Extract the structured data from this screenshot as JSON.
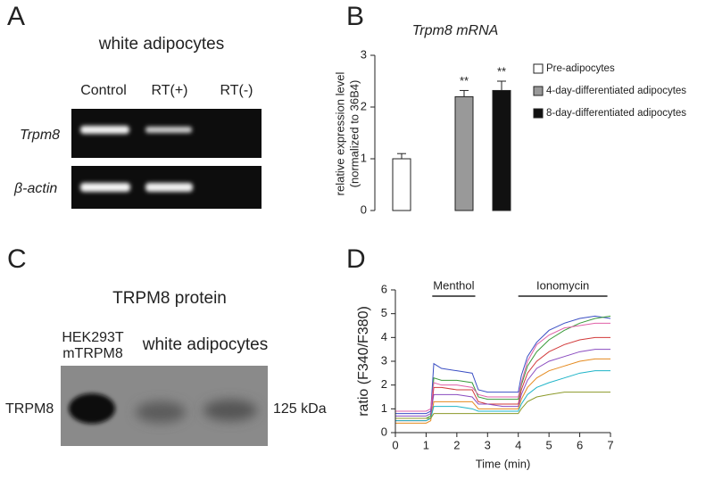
{
  "panels": {
    "A": {
      "letter": "A",
      "title": "white adipocytes",
      "lanes": [
        "Control",
        "RT(+)",
        "RT(-)"
      ],
      "rows": [
        "Trpm8",
        "β-actin"
      ]
    },
    "C": {
      "letter": "C",
      "title": "TRPM8 protein",
      "lane_label_lines": [
        "HEK293T",
        "mTRPM8"
      ],
      "lane_group": "white adipocytes",
      "band_label": "TRPM8",
      "marker": "125 kDa"
    },
    "B": {
      "letter": "B"
    },
    "D": {
      "letter": "D"
    }
  },
  "chart_data": [
    {
      "type": "bar",
      "title": "Trpm8 mRNA",
      "ylabel": [
        "relative expression level",
        "(normalized to 36B4)"
      ],
      "ylim": [
        0,
        3
      ],
      "yticks": [
        0,
        1,
        2,
        3
      ],
      "series": [
        {
          "name": "Pre-adipocytes",
          "color": "#ffffff",
          "values": [
            1.0
          ],
          "errors": [
            0.1
          ]
        },
        {
          "name": "4-day-differentiated adipocytes",
          "color": "#999999",
          "values": [
            2.2
          ],
          "errors": [
            0.12
          ],
          "annotation": "**"
        },
        {
          "name": "8-day-differentiated adipocytes",
          "color": "#111111",
          "values": [
            2.32
          ],
          "errors": [
            0.18
          ],
          "annotation": "**"
        }
      ]
    },
    {
      "type": "line",
      "xlabel": "Time (min)",
      "ylabel": "ratio (F340/F380)",
      "xlim": [
        0,
        7
      ],
      "xticks": [
        0,
        1,
        2,
        3,
        4,
        5,
        6,
        7
      ],
      "ylim": [
        0,
        6
      ],
      "yticks": [
        0,
        1,
        2,
        3,
        4,
        5,
        6
      ],
      "annotations": [
        {
          "text": "Menthol",
          "x_range": [
            1.2,
            2.6
          ]
        },
        {
          "text": "Ionomycin",
          "x_range": [
            4,
            6.9
          ]
        }
      ],
      "x": [
        0,
        0.5,
        1,
        1.15,
        1.25,
        1.5,
        2,
        2.5,
        2.7,
        3,
        3.5,
        4,
        4.1,
        4.3,
        4.6,
        5,
        5.5,
        6,
        6.5,
        7
      ],
      "series": [
        {
          "color": "#3b4fc4",
          "values": [
            0.8,
            0.8,
            0.8,
            0.9,
            2.9,
            2.7,
            2.6,
            2.5,
            1.8,
            1.7,
            1.7,
            1.7,
            2.4,
            3.2,
            3.8,
            4.3,
            4.6,
            4.8,
            4.9,
            4.8
          ]
        },
        {
          "color": "#3a9a3a",
          "values": [
            0.6,
            0.6,
            0.6,
            0.7,
            2.3,
            2.2,
            2.2,
            2.1,
            1.5,
            1.4,
            1.4,
            1.4,
            2.0,
            2.8,
            3.4,
            3.9,
            4.3,
            4.6,
            4.8,
            4.9
          ]
        },
        {
          "color": "#d23a3a",
          "values": [
            0.5,
            0.5,
            0.5,
            0.6,
            1.9,
            1.9,
            1.8,
            1.8,
            1.3,
            1.2,
            1.2,
            1.2,
            1.8,
            2.5,
            3.0,
            3.4,
            3.7,
            3.9,
            4.0,
            4.0
          ]
        },
        {
          "color": "#8a4cc0",
          "values": [
            0.7,
            0.7,
            0.7,
            0.8,
            1.6,
            1.6,
            1.6,
            1.5,
            1.2,
            1.2,
            1.1,
            1.1,
            1.6,
            2.2,
            2.7,
            3.0,
            3.2,
            3.4,
            3.5,
            3.5
          ]
        },
        {
          "color": "#e58a1f",
          "values": [
            0.4,
            0.4,
            0.4,
            0.5,
            1.3,
            1.3,
            1.3,
            1.3,
            1.0,
            1.0,
            1.0,
            1.0,
            1.4,
            1.9,
            2.3,
            2.6,
            2.8,
            3.0,
            3.1,
            3.1
          ]
        },
        {
          "color": "#1fb4c8",
          "values": [
            0.5,
            0.5,
            0.5,
            0.6,
            1.1,
            1.1,
            1.1,
            1.0,
            0.9,
            0.9,
            0.9,
            0.9,
            1.2,
            1.6,
            1.9,
            2.1,
            2.3,
            2.5,
            2.6,
            2.6
          ]
        },
        {
          "color": "#8c9a2a",
          "values": [
            0.6,
            0.6,
            0.6,
            0.6,
            0.8,
            0.8,
            0.8,
            0.8,
            0.8,
            0.8,
            0.8,
            0.8,
            1.0,
            1.3,
            1.5,
            1.6,
            1.7,
            1.7,
            1.7,
            1.7
          ]
        },
        {
          "color": "#e060a8",
          "values": [
            0.9,
            0.9,
            0.9,
            1.0,
            2.1,
            2.0,
            2.0,
            1.9,
            1.6,
            1.5,
            1.5,
            1.5,
            2.1,
            3.0,
            3.7,
            4.1,
            4.4,
            4.5,
            4.6,
            4.6
          ]
        }
      ]
    }
  ]
}
